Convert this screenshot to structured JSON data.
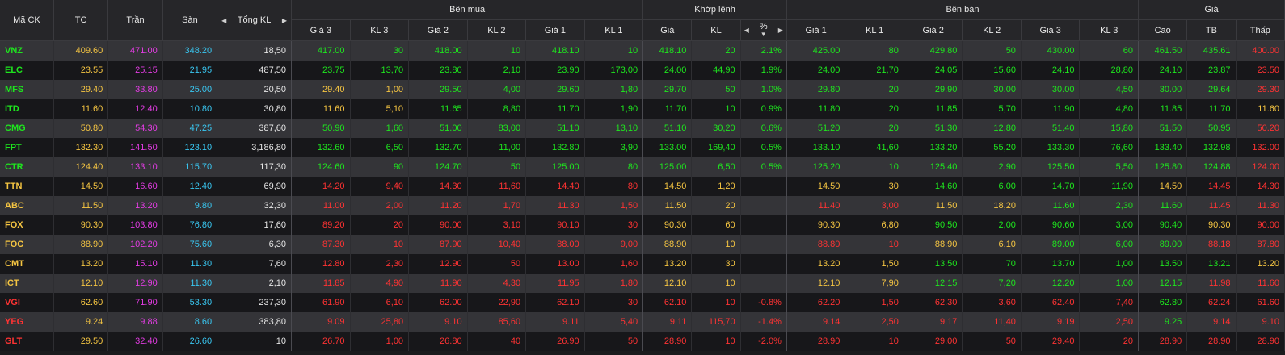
{
  "headers": {
    "symbol": "Mã CK",
    "ref": "TC",
    "ceiling": "Trần",
    "floor": "Sàn",
    "total_vol": "Tổng KL",
    "buy_group": "Bên mua",
    "match_group": "Khớp lệnh",
    "sell_group": "Bên bán",
    "price_group": "Giá",
    "bid3_price": "Giá 3",
    "bid3_vol": "KL 3",
    "bid2_price": "Giá 2",
    "bid2_vol": "KL 2",
    "bid1_price": "Giá 1",
    "bid1_vol": "KL 1",
    "match_price": "Giá",
    "match_vol": "KL",
    "match_pct": "%",
    "ask1_price": "Giá 1",
    "ask1_vol": "KL 1",
    "ask2_price": "Giá 2",
    "ask2_vol": "KL 2",
    "ask3_price": "Giá 3",
    "ask3_vol": "KL 3",
    "high": "Cao",
    "avg": "TB",
    "low": "Thấp"
  },
  "icons": {
    "arrow_left": "◀",
    "arrow_right": "▶",
    "sort_down": "▼"
  },
  "colors": {
    "up": "#1ee61e",
    "down": "#ff3333",
    "ref": "#f5c542",
    "ceiling": "#e33ce3",
    "floor": "#39c6f0",
    "row_alt": "#343438",
    "row_base": "#17171a",
    "header_bg": "#262629"
  },
  "rows": [
    {
      "sym": "VNZ",
      "c": "green",
      "ref": "409.60",
      "ceil": "471.00",
      "floor": "348.20",
      "total": "18,50",
      "b3p": "417.00",
      "b3v": "30",
      "b2p": "418.00",
      "b2v": "10",
      "b1p": "418.10",
      "b1v": "10",
      "mp": "418.10",
      "mv": "20",
      "pct": "2.1%",
      "a1p": "425.00",
      "a1v": "80",
      "a2p": "429.80",
      "a2v": "50",
      "a3p": "430.00",
      "a3v": "60",
      "hi": "461.50",
      "hic": "green",
      "avg": "435.61",
      "avgc": "green",
      "lo": "400.00",
      "loc": "red",
      "bc": [
        "green",
        "green",
        "green"
      ],
      "ac": [
        "green",
        "green",
        "green"
      ]
    },
    {
      "sym": "ELC",
      "c": "green",
      "ref": "23.55",
      "ceil": "25.15",
      "floor": "21.95",
      "total": "487,50",
      "b3p": "23.75",
      "b3v": "13,70",
      "b2p": "23.80",
      "b2v": "2,10",
      "b1p": "23.90",
      "b1v": "173,00",
      "mp": "24.00",
      "mv": "44,90",
      "pct": "1.9%",
      "a1p": "24.00",
      "a1v": "21,70",
      "a2p": "24.05",
      "a2v": "15,60",
      "a3p": "24.10",
      "a3v": "28,80",
      "hi": "24.10",
      "hic": "green",
      "avg": "23.87",
      "avgc": "green",
      "lo": "23.50",
      "loc": "red",
      "bc": [
        "green",
        "green",
        "green"
      ],
      "ac": [
        "green",
        "green",
        "green"
      ]
    },
    {
      "sym": "MFS",
      "c": "green",
      "ref": "29.40",
      "ceil": "33.80",
      "floor": "25.00",
      "total": "20,50",
      "b3p": "29.40",
      "b3v": "1,00",
      "b2p": "29.50",
      "b2v": "4,00",
      "b1p": "29.60",
      "b1v": "1,80",
      "mp": "29.70",
      "mv": "50",
      "pct": "1.0%",
      "a1p": "29.80",
      "a1v": "20",
      "a2p": "29.90",
      "a2v": "30.00",
      "a3p": "30.00",
      "a3v": "4,50",
      "hi": "30.00",
      "hic": "green",
      "avg": "29.64",
      "avgc": "green",
      "lo": "29.30",
      "loc": "red",
      "bc": [
        "yellow",
        "green",
        "green"
      ],
      "ac": [
        "green",
        "green",
        "green"
      ]
    },
    {
      "sym": "ITD",
      "c": "green",
      "ref": "11.60",
      "ceil": "12.40",
      "floor": "10.80",
      "total": "30,80",
      "b3p": "11.60",
      "b3v": "5,10",
      "b2p": "11.65",
      "b2v": "8,80",
      "b1p": "11.70",
      "b1v": "1,90",
      "mp": "11.70",
      "mv": "10",
      "pct": "0.9%",
      "a1p": "11.80",
      "a1v": "20",
      "a2p": "11.85",
      "a2v": "5,70",
      "a3p": "11.90",
      "a3v": "4,80",
      "hi": "11.85",
      "hic": "green",
      "avg": "11.70",
      "avgc": "green",
      "lo": "11.60",
      "loc": "yellow",
      "bc": [
        "yellow",
        "green",
        "green"
      ],
      "ac": [
        "green",
        "green",
        "green"
      ]
    },
    {
      "sym": "CMG",
      "c": "green",
      "ref": "50.80",
      "ceil": "54.30",
      "floor": "47.25",
      "total": "387,60",
      "b3p": "50.90",
      "b3v": "1,60",
      "b2p": "51.00",
      "b2v": "83,00",
      "b1p": "51.10",
      "b1v": "13,10",
      "mp": "51.10",
      "mv": "30,20",
      "pct": "0.6%",
      "a1p": "51.20",
      "a1v": "20",
      "a2p": "51.30",
      "a2v": "12,80",
      "a3p": "51.40",
      "a3v": "15,80",
      "hi": "51.50",
      "hic": "green",
      "avg": "50.95",
      "avgc": "green",
      "lo": "50.20",
      "loc": "red",
      "bc": [
        "green",
        "green",
        "green"
      ],
      "ac": [
        "green",
        "green",
        "green"
      ]
    },
    {
      "sym": "FPT",
      "c": "green",
      "ref": "132.30",
      "ceil": "141.50",
      "floor": "123.10",
      "total": "3,186,80",
      "b3p": "132.60",
      "b3v": "6,50",
      "b2p": "132.70",
      "b2v": "11,00",
      "b1p": "132.80",
      "b1v": "3,90",
      "mp": "133.00",
      "mv": "169,40",
      "pct": "0.5%",
      "a1p": "133.10",
      "a1v": "41,60",
      "a2p": "133.20",
      "a2v": "55,20",
      "a3p": "133.30",
      "a3v": "76,60",
      "hi": "133.40",
      "hic": "green",
      "avg": "132.98",
      "avgc": "green",
      "lo": "132.00",
      "loc": "red",
      "bc": [
        "green",
        "green",
        "green"
      ],
      "ac": [
        "green",
        "green",
        "green"
      ]
    },
    {
      "sym": "CTR",
      "c": "green",
      "ref": "124.40",
      "ceil": "133.10",
      "floor": "115.70",
      "total": "117,30",
      "b3p": "124.60",
      "b3v": "90",
      "b2p": "124.70",
      "b2v": "50",
      "b1p": "125.00",
      "b1v": "80",
      "mp": "125.00",
      "mv": "6,50",
      "pct": "0.5%",
      "a1p": "125.20",
      "a1v": "10",
      "a2p": "125.40",
      "a2v": "2,90",
      "a3p": "125.50",
      "a3v": "5,50",
      "hi": "125.80",
      "hic": "green",
      "avg": "124.88",
      "avgc": "green",
      "lo": "124.00",
      "loc": "red",
      "bc": [
        "green",
        "green",
        "green"
      ],
      "ac": [
        "green",
        "green",
        "green"
      ]
    },
    {
      "sym": "TTN",
      "c": "yellow",
      "ref": "14.50",
      "ceil": "16.60",
      "floor": "12.40",
      "total": "69,90",
      "b3p": "14.20",
      "b3v": "9,40",
      "b2p": "14.30",
      "b2v": "11,60",
      "b1p": "14.40",
      "b1v": "80",
      "mp": "14.50",
      "mv": "1,20",
      "pct": "",
      "a1p": "14.50",
      "a1v": "30",
      "a2p": "14.60",
      "a2v": "6,00",
      "a3p": "14.70",
      "a3v": "11,90",
      "hi": "14.50",
      "hic": "yellow",
      "avg": "14.45",
      "avgc": "red",
      "lo": "14.30",
      "loc": "red",
      "bc": [
        "red",
        "red",
        "red"
      ],
      "ac": [
        "yellow",
        "green",
        "green"
      ]
    },
    {
      "sym": "ABC",
      "c": "yellow",
      "ref": "11.50",
      "ceil": "13.20",
      "floor": "9.80",
      "total": "32,30",
      "b3p": "11.00",
      "b3v": "2,00",
      "b2p": "11.20",
      "b2v": "1,70",
      "b1p": "11.30",
      "b1v": "1,50",
      "mp": "11.50",
      "mv": "20",
      "pct": "",
      "a1p": "11.40",
      "a1v": "3,00",
      "a2p": "11.50",
      "a2v": "18,20",
      "a3p": "11.60",
      "a3v": "2,30",
      "hi": "11.60",
      "hic": "green",
      "avg": "11.45",
      "avgc": "red",
      "lo": "11.30",
      "loc": "red",
      "bc": [
        "red",
        "red",
        "red"
      ],
      "ac": [
        "red",
        "yellow",
        "green"
      ]
    },
    {
      "sym": "FOX",
      "c": "yellow",
      "ref": "90.30",
      "ceil": "103.80",
      "floor": "76.80",
      "total": "17,60",
      "b3p": "89.20",
      "b3v": "20",
      "b2p": "90.00",
      "b2v": "3,10",
      "b1p": "90.10",
      "b1v": "30",
      "mp": "90.30",
      "mv": "60",
      "pct": "",
      "a1p": "90.30",
      "a1v": "6,80",
      "a2p": "90.50",
      "a2v": "2,00",
      "a3p": "90.60",
      "a3v": "3,00",
      "hi": "90.40",
      "hic": "green",
      "avg": "90.30",
      "avgc": "yellow",
      "lo": "90.00",
      "loc": "red",
      "bc": [
        "red",
        "red",
        "red"
      ],
      "ac": [
        "yellow",
        "green",
        "green"
      ]
    },
    {
      "sym": "FOC",
      "c": "yellow",
      "ref": "88.90",
      "ceil": "102.20",
      "floor": "75.60",
      "total": "6,30",
      "b3p": "87.30",
      "b3v": "10",
      "b2p": "87.90",
      "b2v": "10,40",
      "b1p": "88.00",
      "b1v": "9,00",
      "mp": "88.90",
      "mv": "10",
      "pct": "",
      "a1p": "88.80",
      "a1v": "10",
      "a2p": "88.90",
      "a2v": "6,10",
      "a3p": "89.00",
      "a3v": "6,00",
      "hi": "89.00",
      "hic": "green",
      "avg": "88.18",
      "avgc": "red",
      "lo": "87.80",
      "loc": "red",
      "bc": [
        "red",
        "red",
        "red"
      ],
      "ac": [
        "red",
        "yellow",
        "green"
      ]
    },
    {
      "sym": "CMT",
      "c": "yellow",
      "ref": "13.20",
      "ceil": "15.10",
      "floor": "11.30",
      "total": "7,60",
      "b3p": "12.80",
      "b3v": "2,30",
      "b2p": "12.90",
      "b2v": "50",
      "b1p": "13.00",
      "b1v": "1,60",
      "mp": "13.20",
      "mv": "30",
      "pct": "",
      "a1p": "13.20",
      "a1v": "1,50",
      "a2p": "13.50",
      "a2v": "70",
      "a3p": "13.70",
      "a3v": "1,00",
      "hi": "13.50",
      "hic": "green",
      "avg": "13.21",
      "avgc": "green",
      "lo": "13.20",
      "loc": "yellow",
      "bc": [
        "red",
        "red",
        "red"
      ],
      "ac": [
        "yellow",
        "green",
        "green"
      ]
    },
    {
      "sym": "ICT",
      "c": "yellow",
      "ref": "12.10",
      "ceil": "12.90",
      "floor": "11.30",
      "total": "2,10",
      "b3p": "11.85",
      "b3v": "4,90",
      "b2p": "11.90",
      "b2v": "4,30",
      "b1p": "11.95",
      "b1v": "1,80",
      "mp": "12.10",
      "mv": "10",
      "pct": "",
      "a1p": "12.10",
      "a1v": "7,90",
      "a2p": "12.15",
      "a2v": "7,20",
      "a3p": "12.20",
      "a3v": "1,00",
      "hi": "12.15",
      "hic": "green",
      "avg": "11.98",
      "avgc": "red",
      "lo": "11.60",
      "loc": "red",
      "bc": [
        "red",
        "red",
        "red"
      ],
      "ac": [
        "yellow",
        "green",
        "green"
      ]
    },
    {
      "sym": "VGI",
      "c": "red",
      "ref": "62.60",
      "ceil": "71.90",
      "floor": "53.30",
      "total": "237,30",
      "b3p": "61.90",
      "b3v": "6,10",
      "b2p": "62.00",
      "b2v": "22,90",
      "b1p": "62.10",
      "b1v": "30",
      "mp": "62.10",
      "mv": "10",
      "pct": "-0.8%",
      "a1p": "62.20",
      "a1v": "1,50",
      "a2p": "62.30",
      "a2v": "3,60",
      "a3p": "62.40",
      "a3v": "7,40",
      "hi": "62.80",
      "hic": "green",
      "avg": "62.24",
      "avgc": "red",
      "lo": "61.60",
      "loc": "red",
      "bc": [
        "red",
        "red",
        "red"
      ],
      "ac": [
        "red",
        "red",
        "red"
      ]
    },
    {
      "sym": "YEG",
      "c": "red",
      "ref": "9.24",
      "ceil": "9.88",
      "floor": "8.60",
      "total": "383,80",
      "b3p": "9.09",
      "b3v": "25,80",
      "b2p": "9.10",
      "b2v": "85,60",
      "b1p": "9.11",
      "b1v": "5,40",
      "mp": "9.11",
      "mv": "115,70",
      "pct": "-1.4%",
      "a1p": "9.14",
      "a1v": "2,50",
      "a2p": "9.17",
      "a2v": "11,40",
      "a3p": "9.19",
      "a3v": "2,50",
      "hi": "9.25",
      "hic": "green",
      "avg": "9.14",
      "avgc": "red",
      "lo": "9.10",
      "loc": "red",
      "bc": [
        "red",
        "red",
        "red"
      ],
      "ac": [
        "red",
        "red",
        "red"
      ]
    },
    {
      "sym": "GLT",
      "c": "red",
      "ref": "29.50",
      "ceil": "32.40",
      "floor": "26.60",
      "total": "10",
      "b3p": "26.70",
      "b3v": "1,00",
      "b2p": "26.80",
      "b2v": "40",
      "b1p": "26.90",
      "b1v": "50",
      "mp": "28.90",
      "mv": "10",
      "pct": "-2.0%",
      "a1p": "28.90",
      "a1v": "10",
      "a2p": "29.00",
      "a2v": "50",
      "a3p": "29.40",
      "a3v": "20",
      "hi": "28.90",
      "hic": "red",
      "avg": "28.90",
      "avgc": "red",
      "lo": "28.90",
      "loc": "red",
      "bc": [
        "red",
        "red",
        "red"
      ],
      "ac": [
        "red",
        "red",
        "red"
      ]
    }
  ]
}
